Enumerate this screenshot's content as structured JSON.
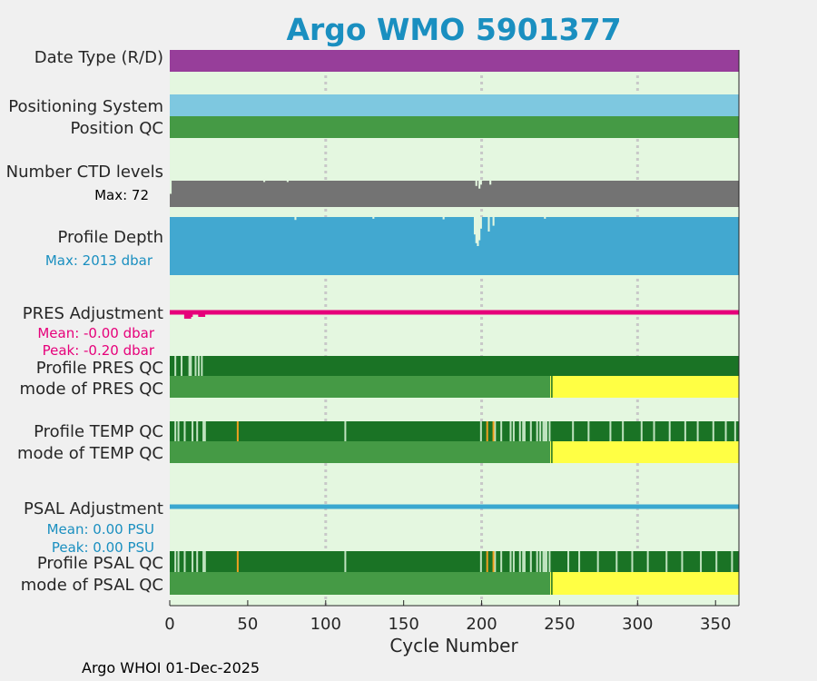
{
  "title": "Argo WMO 5901377",
  "footer": "Argo WHOI 01-Dec-2025",
  "chart_data": {
    "type": "timeline",
    "xlabel": "Cycle Number",
    "xlim": [
      0,
      365
    ],
    "xticks": [
      0,
      50,
      100,
      150,
      200,
      250,
      300,
      350
    ],
    "grid_x": [
      100,
      200,
      300
    ],
    "rows": [
      {
        "label": "Date Type (R/D)",
        "kind": "solid",
        "color": "#973e9a"
      },
      {
        "label": "Positioning System",
        "kind": "solid",
        "color": "#7ec8e0"
      },
      {
        "label": "Position QC",
        "kind": "solid",
        "color": "#459a45"
      },
      {
        "label": "Number CTD levels",
        "kind": "spiky",
        "color": "#737373",
        "note": "Max: 72",
        "spikes": [
          [
            0,
            0.5
          ],
          [
            60,
            0.05
          ],
          [
            75,
            0.05
          ],
          [
            196,
            0.2
          ],
          [
            198,
            0.3
          ],
          [
            199,
            0.15
          ],
          [
            205,
            0.15
          ]
        ]
      },
      {
        "label": "Profile Depth",
        "kind": "spiky",
        "color": "#42a8d0",
        "note": "Max: 2013 dbar",
        "spikes": [
          [
            195,
            0.3
          ],
          [
            196,
            0.45
          ],
          [
            197,
            0.5
          ],
          [
            198,
            0.4
          ],
          [
            199,
            0.2
          ],
          [
            204,
            0.25
          ],
          [
            207,
            0.15
          ],
          [
            80,
            0.05
          ],
          [
            130,
            0.03
          ],
          [
            175,
            0.04
          ],
          [
            240,
            0.03
          ]
        ]
      },
      {
        "label": "PRES Adjustment",
        "kind": "line",
        "color": "#e6007a",
        "notes": [
          "Mean: -0.00 dbar",
          "Peak: -0.20 dbar"
        ],
        "dips": [
          [
            11,
            0.2
          ],
          [
            12,
            0.2
          ],
          [
            13,
            0.1
          ],
          [
            20,
            0.1
          ],
          [
            21,
            0.1
          ]
        ]
      },
      {
        "label": "Profile PRES QC",
        "kind": "qc",
        "color": "#1a7325",
        "light_cycles": [
          3,
          7,
          12,
          13,
          16,
          18,
          20
        ]
      },
      {
        "label": "mode of PRES QC",
        "kind": "mode",
        "colors": [
          "#459a45",
          "#ffff44"
        ],
        "switch": 244
      },
      {
        "label": "Profile TEMP QC",
        "kind": "qc",
        "color": "#1a7325",
        "light_cycles": [
          3,
          5,
          9,
          14,
          17,
          21,
          22,
          112,
          199,
          208,
          212,
          218,
          220,
          224,
          226,
          227,
          231,
          235,
          237,
          239,
          240,
          241,
          243,
          258,
          268,
          282,
          290,
          302,
          310,
          320,
          330,
          338,
          348,
          356,
          362
        ],
        "orange_cycles": [
          43,
          203,
          207
        ]
      },
      {
        "label": "mode of TEMP QC",
        "kind": "mode",
        "colors": [
          "#459a45",
          "#ffff44"
        ],
        "switch": 244
      },
      {
        "label": "PSAL Adjustment",
        "kind": "line",
        "color": "#3aa8d0",
        "notes": [
          "Mean: 0.00 PSU",
          "Peak: 0.00 PSU"
        ],
        "dips": []
      },
      {
        "label": "Profile PSAL QC",
        "kind": "qc",
        "color": "#1a7325",
        "light_cycles": [
          3,
          5,
          9,
          14,
          17,
          21,
          22,
          112,
          199,
          208,
          212,
          218,
          220,
          224,
          226,
          227,
          231,
          235,
          237,
          239,
          240,
          241,
          243,
          255,
          262,
          274,
          286,
          296,
          306,
          318,
          328,
          340,
          350,
          360
        ],
        "orange_cycles": [
          43,
          203,
          207
        ]
      },
      {
        "label": "mode of PSAL QC",
        "kind": "mode",
        "colors": [
          "#459a45",
          "#ffff44"
        ],
        "switch": 244
      }
    ],
    "bg_color": "#e4f7e0",
    "grid_color": "#c8c8c8"
  }
}
